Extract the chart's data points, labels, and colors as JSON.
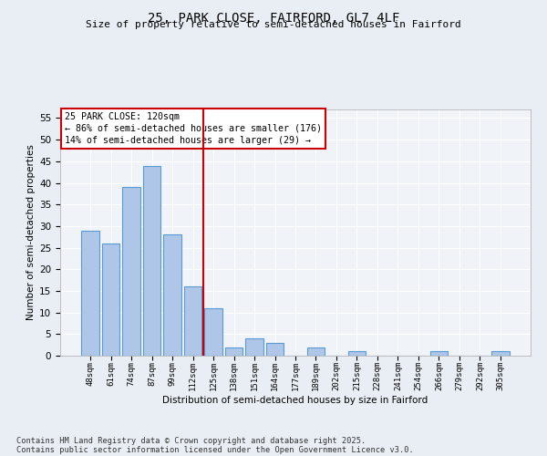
{
  "title1": "25, PARK CLOSE, FAIRFORD, GL7 4LF",
  "title2": "Size of property relative to semi-detached houses in Fairford",
  "xlabel": "Distribution of semi-detached houses by size in Fairford",
  "ylabel": "Number of semi-detached properties",
  "categories": [
    "48sqm",
    "61sqm",
    "74sqm",
    "87sqm",
    "99sqm",
    "112sqm",
    "125sqm",
    "138sqm",
    "151sqm",
    "164sqm",
    "177sqm",
    "189sqm",
    "202sqm",
    "215sqm",
    "228sqm",
    "241sqm",
    "254sqm",
    "266sqm",
    "279sqm",
    "292sqm",
    "305sqm"
  ],
  "values": [
    29,
    26,
    39,
    44,
    28,
    16,
    11,
    2,
    4,
    3,
    0,
    2,
    0,
    1,
    0,
    0,
    0,
    1,
    0,
    0,
    1
  ],
  "bar_color": "#aec6e8",
  "bar_edge_color": "#5b9bd5",
  "marker_label": "25 PARK CLOSE: 120sqm",
  "annotation_line1": "← 86% of semi-detached houses are smaller (176)",
  "annotation_line2": "14% of semi-detached houses are larger (29) →",
  "marker_color": "#cc0000",
  "ylim": [
    0,
    57
  ],
  "yticks": [
    0,
    5,
    10,
    15,
    20,
    25,
    30,
    35,
    40,
    45,
    50,
    55
  ],
  "footnote1": "Contains HM Land Registry data © Crown copyright and database right 2025.",
  "footnote2": "Contains public sector information licensed under the Open Government Licence v3.0.",
  "bg_color": "#e8eef4",
  "plot_bg_color": "#f0f4f8",
  "grid_color": "#ffffff"
}
